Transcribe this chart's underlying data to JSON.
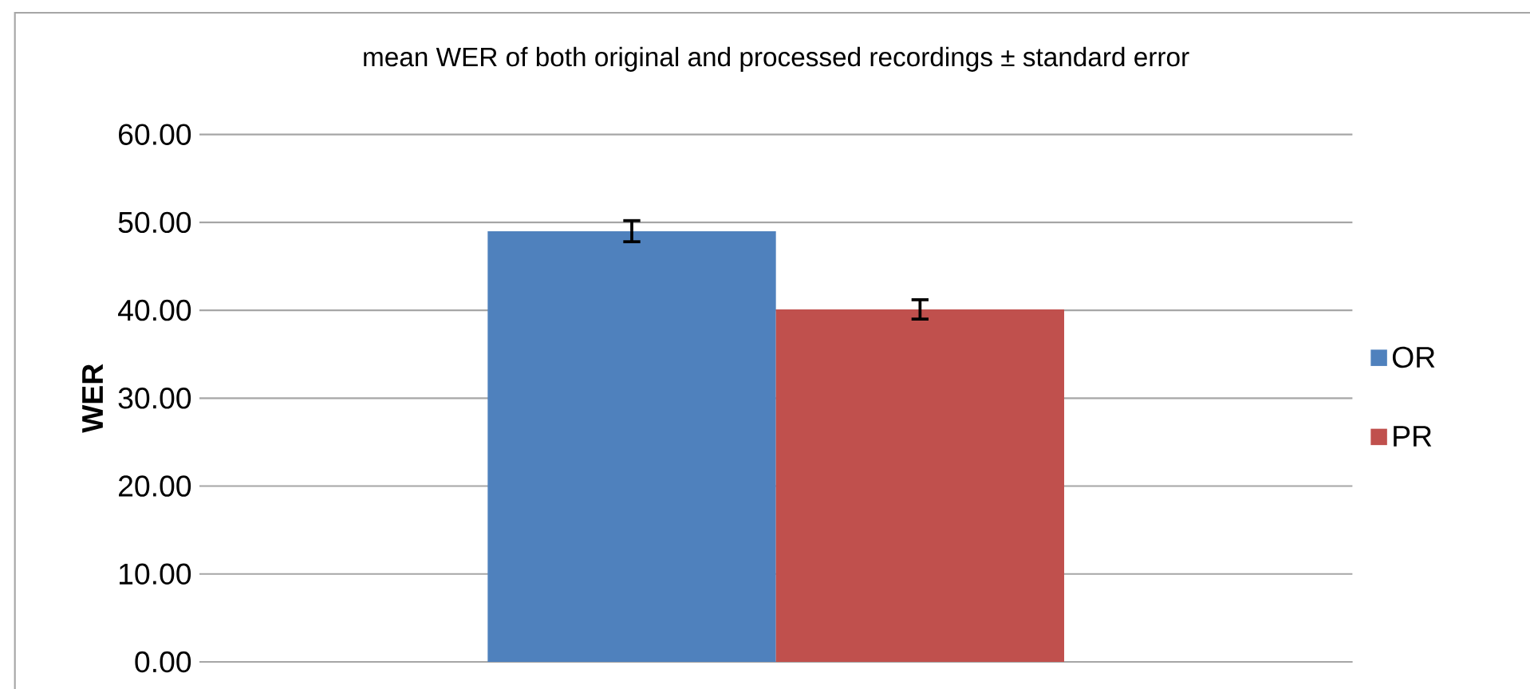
{
  "chart_data": {
    "type": "bar",
    "title": "mean WER of both original and processed recordings ± standard error",
    "ylabel": "WER",
    "categories": [
      null
    ],
    "series": [
      {
        "name": "OR",
        "color": "#4f81bd",
        "values": [
          49.0
        ],
        "errors": [
          1.2
        ]
      },
      {
        "name": "PR",
        "color": "#c0504d",
        "values": [
          40.1
        ],
        "errors": [
          1.1
        ]
      }
    ],
    "ylim": [
      0,
      60
    ],
    "yticks": [
      {
        "value": 0,
        "label": "0.00"
      },
      {
        "value": 10,
        "label": "10.00"
      },
      {
        "value": 20,
        "label": "20.00"
      },
      {
        "value": 30,
        "label": "30.00"
      },
      {
        "value": 40,
        "label": "40.00"
      },
      {
        "value": 50,
        "label": "50.00"
      },
      {
        "value": 60,
        "label": "60.00"
      }
    ],
    "grid": "y",
    "legend": "right",
    "tick_labels": "y"
  }
}
